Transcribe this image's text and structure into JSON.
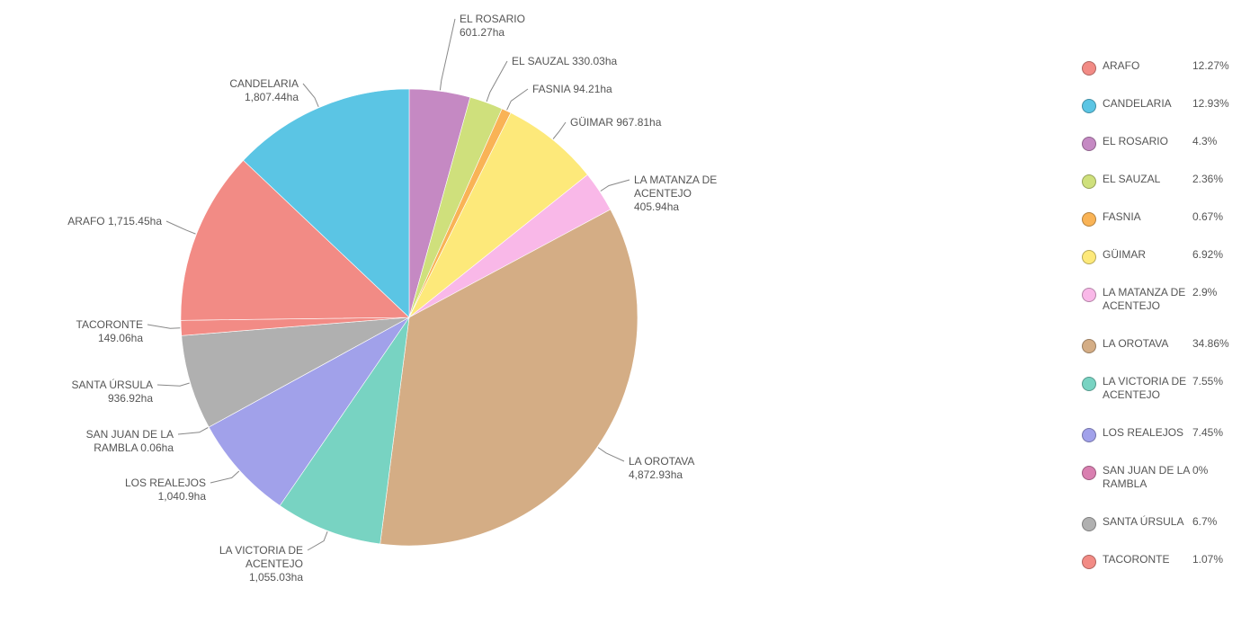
{
  "chart_data": {
    "type": "pie",
    "title": "",
    "unit": "ha",
    "legend_position": "right",
    "slices": [
      {
        "name": "ARAFO",
        "value": 1715.45,
        "label": "ARAFO 1,715.45ha",
        "legend_name": "ARAFO",
        "percent": "12.27%",
        "color": "#f28b85"
      },
      {
        "name": "CANDELARIA",
        "value": 1807.44,
        "label": "CANDELARIA\n1,807.44ha",
        "legend_name": "CANDELARIA",
        "percent": "12.93%",
        "color": "#5bc5e4"
      },
      {
        "name": "EL ROSARIO",
        "value": 601.27,
        "label": "EL ROSARIO\n601.27ha",
        "legend_name": "EL ROSARIO",
        "percent": "4.3%",
        "color": "#c589c3"
      },
      {
        "name": "EL SAUZAL",
        "value": 330.03,
        "label": "EL SAUZAL 330.03ha",
        "legend_name": "EL SAUZAL",
        "percent": "2.36%",
        "color": "#cfe07c"
      },
      {
        "name": "FASNIA",
        "value": 94.21,
        "label": "FASNIA 94.21ha",
        "legend_name": "FASNIA",
        "percent": "0.67%",
        "color": "#f9b356"
      },
      {
        "name": "GÜIMAR",
        "value": 967.81,
        "label": "GÜIMAR 967.81ha",
        "legend_name": "GÜIMAR",
        "percent": "6.92%",
        "color": "#fde97a"
      },
      {
        "name": "LA MATANZA DE ACENTEJO",
        "value": 405.94,
        "label": "LA MATANZA DE\nACENTEJO\n405.94ha",
        "legend_name": "LA MATANZA DE\nACENTEJO",
        "percent": "2.9%",
        "color": "#f9b8e8"
      },
      {
        "name": "LA OROTAVA",
        "value": 4872.93,
        "label": "LA OROTAVA\n4,872.93ha",
        "legend_name": "LA OROTAVA",
        "percent": "34.86%",
        "color": "#d4ad85"
      },
      {
        "name": "LA VICTORIA DE ACENTEJO",
        "value": 1055.03,
        "label": "LA VICTORIA DE\nACENTEJO\n1,055.03ha",
        "legend_name": "LA VICTORIA DE\nACENTEJO",
        "percent": "7.55%",
        "color": "#78d3c2"
      },
      {
        "name": "LOS REALEJOS",
        "value": 1040.9,
        "label": "LOS REALEJOS\n1,040.9ha",
        "legend_name": "LOS REALEJOS",
        "percent": "7.45%",
        "color": "#a1a1ea"
      },
      {
        "name": "SAN JUAN DE LA RAMBLA",
        "value": 0.06,
        "label": "SAN JUAN DE LA\nRAMBLA 0.06ha",
        "legend_name": "SAN JUAN DE LA\nRAMBLA",
        "percent": "0%",
        "color": "#d97fb0"
      },
      {
        "name": "SANTA ÚRSULA",
        "value": 936.92,
        "label": "SANTA ÚRSULA\n936.92ha",
        "legend_name": "SANTA ÚRSULA",
        "percent": "6.7%",
        "color": "#b0b0b0"
      },
      {
        "name": "TACORONTE",
        "value": 149.06,
        "label": "TACORONTE\n149.06ha",
        "legend_name": "TACORONTE",
        "percent": "1.07%",
        "color": "#f28b85"
      }
    ]
  }
}
